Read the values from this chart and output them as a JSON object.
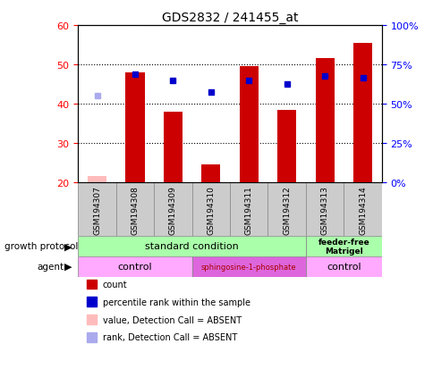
{
  "title": "GDS2832 / 241455_at",
  "samples": [
    "GSM194307",
    "GSM194308",
    "GSM194309",
    "GSM194310",
    "GSM194311",
    "GSM194312",
    "GSM194313",
    "GSM194314"
  ],
  "count_values": [
    null,
    48.0,
    38.0,
    24.5,
    49.5,
    38.5,
    51.5,
    55.5
  ],
  "count_absent": [
    21.5
  ],
  "count_absent_idx": [
    0
  ],
  "rank_values": [
    null,
    47.5,
    46.0,
    43.0,
    46.0,
    45.0,
    47.0,
    46.5
  ],
  "rank_absent": [
    42.0
  ],
  "rank_absent_idx": [
    0
  ],
  "ylim": [
    20,
    60
  ],
  "y2lim": [
    0,
    100
  ],
  "yticks": [
    20,
    30,
    40,
    50,
    60
  ],
  "y2ticks": [
    0,
    25,
    50,
    75,
    100
  ],
  "y2ticklabels": [
    "0%",
    "25%",
    "50%",
    "75%",
    "100%"
  ],
  "bar_color": "#cc0000",
  "bar_absent_color": "#ffbbbb",
  "rank_color": "#0000cc",
  "rank_absent_color": "#aaaaee",
  "growth_standard_color": "#aaffaa",
  "growth_feeder_color": "#aaffaa",
  "agent_control_color": "#ffaaff",
  "agent_sph_color": "#dd66dd",
  "legend_items": [
    {
      "label": "count",
      "color": "#cc0000"
    },
    {
      "label": "percentile rank within the sample",
      "color": "#0000cc"
    },
    {
      "label": "value, Detection Call = ABSENT",
      "color": "#ffbbbb"
    },
    {
      "label": "rank, Detection Call = ABSENT",
      "color": "#aaaaee"
    }
  ],
  "bar_width": 0.5,
  "sample_cell_color": "#cccccc",
  "sample_cell_edge": "#888888"
}
